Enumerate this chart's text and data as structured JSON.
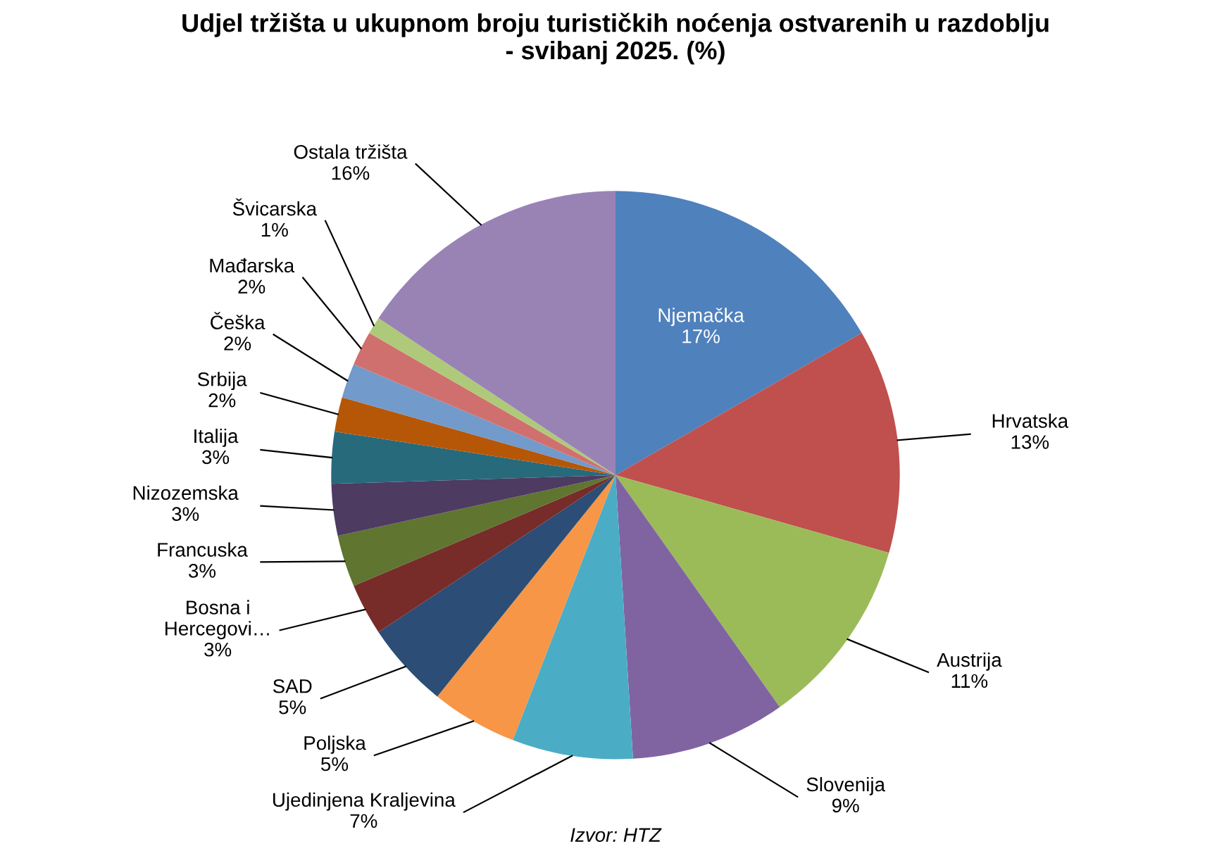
{
  "chart_data": {
    "type": "pie",
    "title": "Udjel tržišta u ukupnom broju turističkih noćenja ostvarenih u razdoblju\n- svibanj 2025. (%)",
    "categories": [
      "Njemačka",
      "Hrvatska",
      "Austrija",
      "Slovenija",
      "Ujedinjena Kraljevina",
      "Poljska",
      "SAD",
      "Bosna i\nHercegovi…",
      "Francuska",
      "Nizozemska",
      "Italija",
      "Srbija",
      "Češka",
      "Mađarska",
      "Švicarska",
      "Ostala tržišta"
    ],
    "values": [
      17,
      13,
      11,
      9,
      7,
      5,
      5,
      3,
      3,
      3,
      3,
      2,
      2,
      2,
      1,
      16
    ],
    "value_labels": [
      "17%",
      "13%",
      "11%",
      "9%",
      "7%",
      "5%",
      "5%",
      "3%",
      "3%",
      "3%",
      "3%",
      "2%",
      "2%",
      "2%",
      "1%",
      "16%"
    ],
    "colors": [
      "#4f81bd",
      "#c0504d",
      "#9bbb59",
      "#8064a2",
      "#4bacc6",
      "#f79646",
      "#2c4d75",
      "#772c2a",
      "#5f7530",
      "#4d3b62",
      "#276a7c",
      "#b65708",
      "#729aca",
      "#d0706e",
      "#afc97a",
      "#9983b5"
    ],
    "annotations": [
      "Izvor: HTZ"
    ],
    "legend": false
  }
}
